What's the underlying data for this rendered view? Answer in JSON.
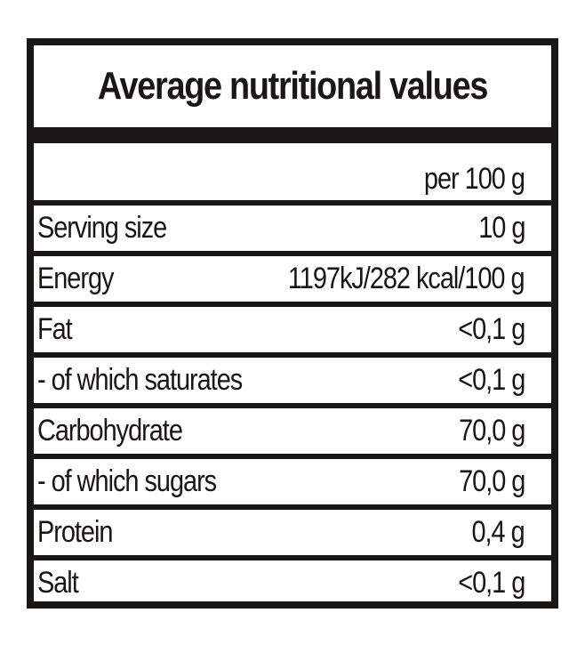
{
  "title": "Average nutritional values",
  "header_value": "per 100 g",
  "rows": [
    {
      "name": "Serving size",
      "value": "10 g"
    },
    {
      "name": "Energy",
      "value": "1197kJ/282 kcal/100 g"
    },
    {
      "name": "Fat",
      "value": "<0,1 g"
    },
    {
      "name": "- of which saturates",
      "value": "<0,1 g"
    },
    {
      "name": "Carbohydrate",
      "value": "70,0 g"
    },
    {
      "name": "- of which sugars",
      "value": "70,0 g"
    },
    {
      "name": "Protein",
      "value": "0,4 g"
    },
    {
      "name": "Salt",
      "value": "<0,1 g"
    }
  ],
  "colors": {
    "ink": "#1a1613",
    "background": "#ffffff"
  }
}
